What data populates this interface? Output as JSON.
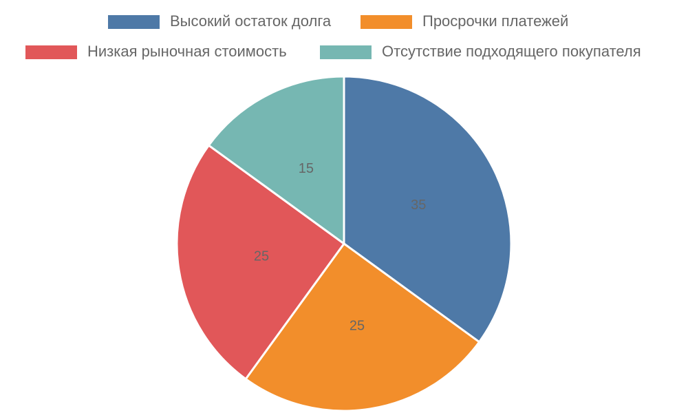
{
  "chart_data": {
    "type": "pie",
    "categories": [
      "Высокий остаток долга",
      "Просрочки платежей",
      "Низкая рыночная стоимость",
      "Отсутствие подходящего покупателя"
    ],
    "values": [
      35,
      25,
      25,
      15
    ],
    "colors": [
      "#4e79a7",
      "#f28e2b",
      "#e15759",
      "#76b7b2"
    ],
    "legend": "top"
  }
}
